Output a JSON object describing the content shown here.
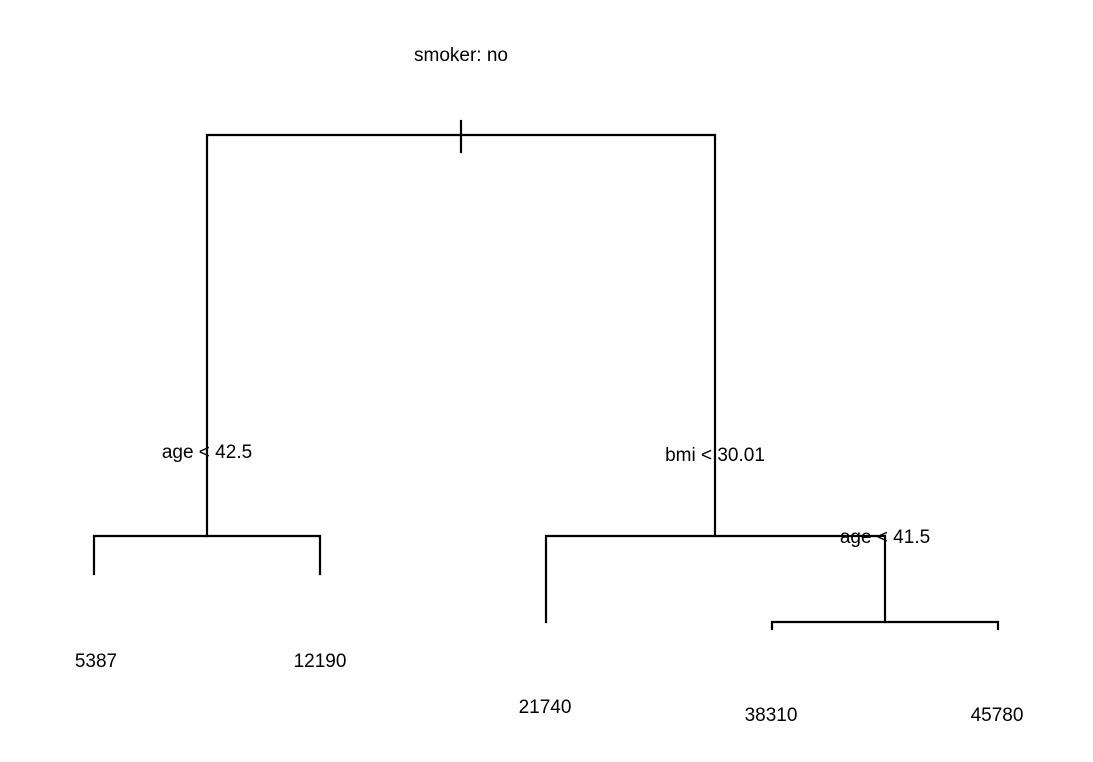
{
  "tree": {
    "root": {
      "split": "smoker: no",
      "left": {
        "split": "age < 42.5",
        "left": {
          "leaf": "5387"
        },
        "right": {
          "leaf": "12190"
        }
      },
      "right": {
        "split": "bmi < 30.01",
        "left": {
          "leaf": "21740"
        },
        "right": {
          "split": "age < 41.5",
          "left": {
            "leaf": "38310"
          },
          "right": {
            "leaf": "45780"
          }
        }
      }
    }
  },
  "colors": {
    "line": "#000000",
    "text": "#000000",
    "background": "#ffffff"
  }
}
